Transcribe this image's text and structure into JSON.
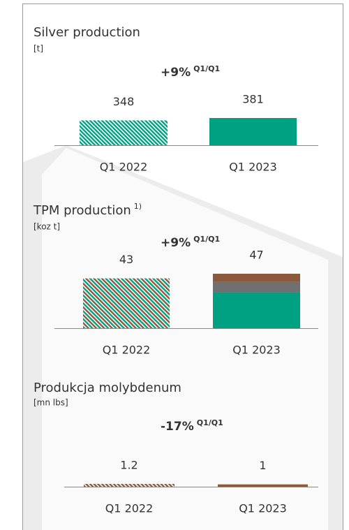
{
  "chart_data": [
    {
      "type": "bar",
      "title": "Silver production",
      "unit": "[t]",
      "change": "+9%",
      "change_note": "Q1/Q1",
      "categories": [
        "Q1 2022",
        "Q1 2023"
      ],
      "values": [
        348,
        381
      ],
      "colors": [
        [
          "#00a082"
        ],
        [
          "#00a082"
        ]
      ],
      "hatched": [
        true,
        false
      ]
    },
    {
      "type": "bar",
      "title": "TPM production",
      "title_note": "1)",
      "unit": "[koz t]",
      "change": "+9%",
      "change_note": "Q1/Q1",
      "categories": [
        "Q1 2022",
        "Q1 2023"
      ],
      "values": [
        43,
        47
      ],
      "colors": [
        [
          "#00a082",
          "#8b5a3c"
        ],
        [
          "#00a082"
        ]
      ],
      "hatched": [
        true,
        false
      ],
      "breakdown": [
        31,
        9,
        7
      ],
      "breakdown_colors": [
        "#00a082",
        "#707070",
        "#8b5a3c"
      ]
    },
    {
      "type": "bar",
      "title": "Produkcja molybdenum",
      "unit": "[mn lbs]",
      "change": "-17%",
      "change_note": "Q1/Q1",
      "categories": [
        "Q1 2022",
        "Q1 2023"
      ],
      "values": [
        1.2,
        1.0
      ],
      "colors": [
        [
          "#8b5a3c"
        ],
        [
          "#8b5a3c"
        ]
      ],
      "hatched": [
        true,
        false
      ]
    }
  ]
}
